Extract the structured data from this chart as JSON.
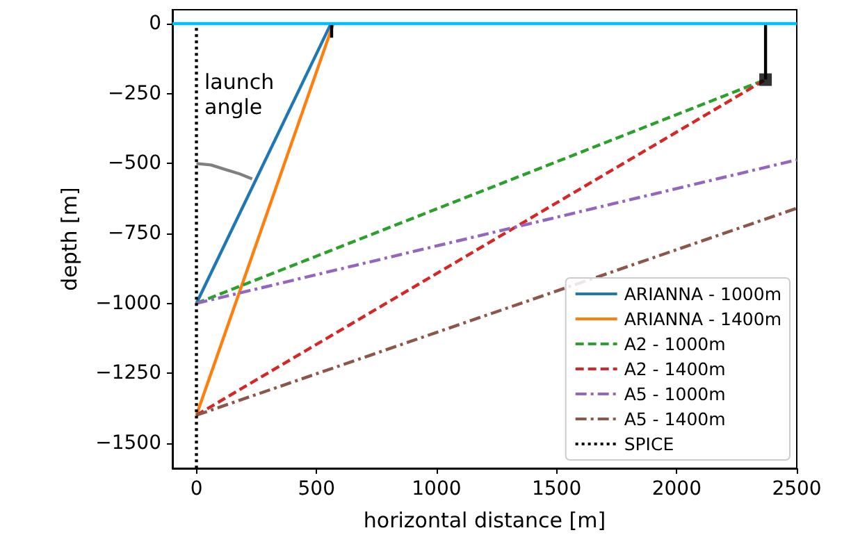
{
  "chart_data": {
    "type": "line",
    "xlabel": "horizontal distance [m]",
    "ylabel": "depth [m]",
    "annotations": [
      "launch angle"
    ],
    "xlim": [
      -100,
      2500
    ],
    "xticks": [
      0,
      500,
      1000,
      1500,
      2000,
      2500
    ],
    "ylim": [
      -1590,
      50
    ],
    "yticks": [
      {
        "value": 0,
        "label": "0"
      },
      {
        "value": -250,
        "label": "−250"
      },
      {
        "value": -500,
        "label": "−500"
      },
      {
        "value": -750,
        "label": "−750"
      },
      {
        "value": -1000,
        "label": "−1000"
      },
      {
        "value": -1250,
        "label": "−1250"
      },
      {
        "value": -1500,
        "label": "−1500"
      }
    ],
    "grid": false,
    "legend": "bottom right",
    "ref_lines": [
      {
        "axis": "y",
        "value": 0,
        "color": "#00bfff",
        "line_style": "solid"
      }
    ],
    "series": [
      {
        "name": "ARIANNA - 1000m",
        "color": "#1f77b4",
        "line_style": "solid",
        "x": [
          0,
          560
        ],
        "values": [
          -1000,
          0
        ]
      },
      {
        "name": "ARIANNA - 1400m",
        "color": "#ff7f0e",
        "line_style": "solid",
        "x": [
          0,
          570
        ],
        "values": [
          -1400,
          0
        ]
      },
      {
        "name": "A2 - 1000m",
        "color": "#2ca02c",
        "line_style": "dashed",
        "x": [
          0,
          2370
        ],
        "values": [
          -1000,
          -200
        ]
      },
      {
        "name": "A2 - 1400m",
        "color": "#d62728",
        "line_style": "dashed",
        "x": [
          0,
          2370
        ],
        "values": [
          -1400,
          -200
        ]
      },
      {
        "name": "A5 - 1000m",
        "color": "#9467bd",
        "line_style": "dashdot",
        "x": [
          0,
          2500
        ],
        "values": [
          -1000,
          -487
        ]
      },
      {
        "name": "A5 - 1400m",
        "color": "#8c564b",
        "line_style": "dashdot",
        "x": [
          0,
          2500
        ],
        "values": [
          -1400,
          -660
        ]
      },
      {
        "name": "SPICE",
        "color": "#000000",
        "line_style": "dotted",
        "x": [
          0,
          0
        ],
        "values": [
          -15,
          -1590
        ]
      },
      {
        "color": "#808080",
        "line_style": "solid",
        "x": [
          0,
          60,
          122,
          180,
          232
        ],
        "values": [
          -500,
          -505,
          -522,
          -537,
          -555
        ]
      },
      {
        "color": "#000000",
        "line_style": "solid",
        "x": [
          2370,
          2370
        ],
        "values": [
          0,
          -200
        ]
      },
      {
        "color": "#000000",
        "line_style": "solid",
        "x": [
          563,
          563
        ],
        "values": [
          0,
          -50
        ]
      },
      {
        "type": "scatter",
        "color": "#000000",
        "marker": "square",
        "x": [
          2370
        ],
        "values": [
          -200
        ]
      }
    ]
  }
}
